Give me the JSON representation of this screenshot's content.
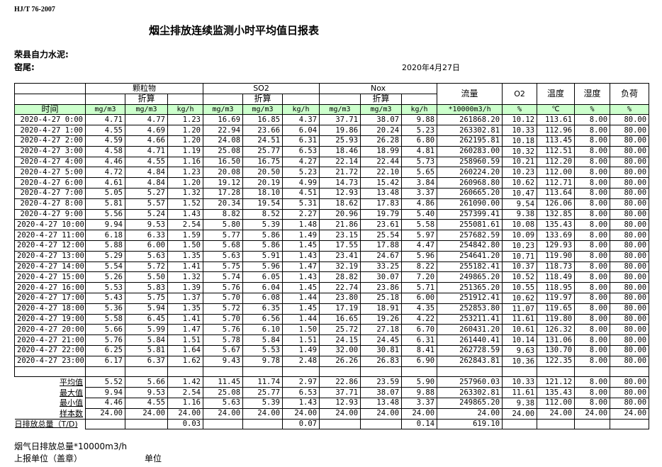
{
  "header": {
    "standard": "HJ/T  76-2007",
    "title": "烟尘排放连续监测小时平均值日报表",
    "company": "荣县自力水泥:",
    "kiln": "窑尾:",
    "date": "2020年4月27日"
  },
  "table": {
    "groups": {
      "pm": "颗粒物",
      "so2": "SO2",
      "nox": "Nox",
      "flow": "流量",
      "o2": "O2",
      "temp": "温度",
      "hum": "湿度",
      "load": "负荷"
    },
    "converted": "折算",
    "time_label": "时间",
    "units": [
      "mg/m3",
      "mg/m3",
      "kg/h",
      "mg/m3",
      "mg/m3",
      "kg/h",
      "mg/m3",
      "mg/m3",
      "kg/h",
      "*10000m3/h",
      "%",
      "℃",
      "%",
      "%"
    ],
    "rows": [
      [
        "2020-4-27 0:00",
        "4.71",
        "4.77",
        "1.23",
        "16.69",
        "16.85",
        "4.37",
        "37.71",
        "38.07",
        "9.88",
        "261868.20",
        "10.12",
        "113.61",
        "8.00",
        "80.00"
      ],
      [
        "2020-4-27 1:00",
        "4.55",
        "4.69",
        "1.20",
        "22.94",
        "23.66",
        "6.04",
        "19.86",
        "20.24",
        "5.23",
        "263302.81",
        "10.33",
        "112.96",
        "8.00",
        "80.00"
      ],
      [
        "2020-4-27 2:00",
        "4.59",
        "4.66",
        "1.20",
        "24.08",
        "24.51",
        "6.31",
        "25.93",
        "26.28",
        "6.80",
        "262195.81",
        "10.18",
        "113.45",
        "8.00",
        "80.00"
      ],
      [
        "2020-4-27 3:00",
        "4.58",
        "4.71",
        "1.19",
        "25.08",
        "25.77",
        "6.53",
        "18.46",
        "18.99",
        "4.81",
        "260283.00",
        "10.32",
        "112.51",
        "8.00",
        "80.00"
      ],
      [
        "2020-4-27 4:00",
        "4.46",
        "4.55",
        "1.16",
        "16.50",
        "16.75",
        "4.27",
        "22.14",
        "22.44",
        "5.73",
        "258960.59",
        "10.21",
        "112.20",
        "8.00",
        "80.00"
      ],
      [
        "2020-4-27 5:00",
        "4.72",
        "4.84",
        "1.23",
        "20.08",
        "20.50",
        "5.23",
        "21.72",
        "22.10",
        "5.65",
        "260224.20",
        "10.23",
        "112.00",
        "8.00",
        "80.00"
      ],
      [
        "2020-4-27 6:00",
        "4.61",
        "4.84",
        "1.20",
        "19.12",
        "20.19",
        "4.99",
        "14.73",
        "15.42",
        "3.84",
        "260968.80",
        "10.62",
        "112.71",
        "8.00",
        "80.00"
      ],
      [
        "2020-4-27 7:00",
        "5.05",
        "5.27",
        "1.32",
        "17.28",
        "18.10",
        "4.51",
        "12.93",
        "13.48",
        "3.37",
        "260665.20",
        "10.47",
        "113.64",
        "8.00",
        "80.00"
      ],
      [
        "2020-4-27 8:00",
        "5.81",
        "5.57",
        "1.52",
        "20.34",
        "19.54",
        "5.31",
        "18.62",
        "17.83",
        "4.86",
        "261090.00",
        "9.54",
        "126.06",
        "8.00",
        "80.00"
      ],
      [
        "2020-4-27 9:00",
        "5.56",
        "5.24",
        "1.43",
        "8.82",
        "8.52",
        "2.27",
        "20.96",
        "19.79",
        "5.40",
        "257399.41",
        "9.38",
        "132.85",
        "8.00",
        "80.00"
      ],
      [
        "2020-4-27 10:00",
        "9.94",
        "9.53",
        "2.54",
        "5.80",
        "5.39",
        "1.48",
        "21.86",
        "23.61",
        "5.58",
        "255081.61",
        "10.08",
        "135.43",
        "8.00",
        "80.00"
      ],
      [
        "2020-4-27 11:00",
        "6.18",
        "6.33",
        "1.59",
        "5.77",
        "5.86",
        "1.49",
        "23.15",
        "25.54",
        "5.97",
        "257682.59",
        "10.09",
        "133.69",
        "8.00",
        "80.00"
      ],
      [
        "2020-4-27 12:00",
        "5.88",
        "6.00",
        "1.50",
        "5.68",
        "5.86",
        "1.45",
        "17.55",
        "17.88",
        "4.47",
        "254842.80",
        "10.23",
        "129.93",
        "8.00",
        "80.00"
      ],
      [
        "2020-4-27 13:00",
        "5.29",
        "5.63",
        "1.35",
        "5.63",
        "5.91",
        "1.43",
        "23.41",
        "24.67",
        "5.96",
        "254641.20",
        "10.71",
        "119.90",
        "8.00",
        "80.00"
      ],
      [
        "2020-4-27 14:00",
        "5.54",
        "5.72",
        "1.41",
        "5.75",
        "5.96",
        "1.47",
        "32.19",
        "33.25",
        "8.22",
        "255182.41",
        "10.37",
        "118.73",
        "8.00",
        "80.00"
      ],
      [
        "2020-4-27 15:00",
        "5.26",
        "5.50",
        "1.32",
        "5.74",
        "6.05",
        "1.43",
        "28.82",
        "30.07",
        "7.20",
        "249865.20",
        "10.52",
        "118.49",
        "8.00",
        "80.00"
      ],
      [
        "2020-4-27 16:00",
        "5.53",
        "5.83",
        "1.39",
        "5.76",
        "6.04",
        "1.45",
        "22.74",
        "23.86",
        "5.71",
        "251365.20",
        "10.55",
        "118.95",
        "8.00",
        "80.00"
      ],
      [
        "2020-4-27 17:00",
        "5.43",
        "5.75",
        "1.37",
        "5.70",
        "6.08",
        "1.44",
        "23.80",
        "25.18",
        "6.00",
        "251912.41",
        "10.62",
        "119.97",
        "8.00",
        "80.00"
      ],
      [
        "2020-4-27 18:00",
        "5.36",
        "5.94",
        "1.35",
        "5.72",
        "6.35",
        "1.45",
        "17.19",
        "18.91",
        "4.35",
        "252853.80",
        "11.07",
        "119.65",
        "8.00",
        "80.00"
      ],
      [
        "2020-4-27 19:00",
        "5.58",
        "6.45",
        "1.41",
        "5.70",
        "6.56",
        "1.44",
        "16.65",
        "19.26",
        "4.22",
        "253211.41",
        "11.61",
        "119.80",
        "8.00",
        "80.00"
      ],
      [
        "2020-4-27 20:00",
        "5.66",
        "5.99",
        "1.47",
        "5.76",
        "6.10",
        "1.50",
        "25.72",
        "27.18",
        "6.70",
        "260431.20",
        "10.61",
        "126.32",
        "8.00",
        "80.00"
      ],
      [
        "2020-4-27 21:00",
        "5.76",
        "5.84",
        "1.51",
        "5.78",
        "5.84",
        "1.51",
        "24.15",
        "24.45",
        "6.31",
        "261440.41",
        "10.14",
        "131.06",
        "8.00",
        "80.00"
      ],
      [
        "2020-4-27 22:00",
        "6.25",
        "5.81",
        "1.64",
        "5.67",
        "5.53",
        "1.49",
        "32.00",
        "30.81",
        "8.41",
        "262728.59",
        "9.63",
        "130.70",
        "8.00",
        "80.00"
      ],
      [
        "2020-4-27 23:00",
        "6.17",
        "6.37",
        "1.62",
        "9.43",
        "9.78",
        "2.48",
        "26.26",
        "26.83",
        "6.90",
        "262843.81",
        "10.36",
        "122.35",
        "8.00",
        "80.00"
      ]
    ],
    "summary": [
      [
        "平均值",
        "5.52",
        "5.66",
        "1.42",
        "11.45",
        "11.74",
        "2.97",
        "22.86",
        "23.59",
        "5.90",
        "257960.03",
        "10.33",
        "121.12",
        "8.00",
        "80.00"
      ],
      [
        "最大值",
        "9.94",
        "9.53",
        "2.54",
        "25.08",
        "25.77",
        "6.53",
        "37.71",
        "38.07",
        "9.88",
        "263302.81",
        "11.61",
        "135.43",
        "8.00",
        "80.00"
      ],
      [
        "最小值",
        "4.46",
        "4.55",
        "1.16",
        "5.63",
        "5.39",
        "1.43",
        "12.93",
        "13.48",
        "3.37",
        "249865.20",
        "9.38",
        "112.00",
        "8.00",
        "80.00"
      ],
      [
        "样本数",
        "24.00",
        "24.00",
        "24.00",
        "24.00",
        "24.00",
        "24.00",
        "24.00",
        "24.00",
        "24.00",
        "24.00",
        "24.00",
        "24.00",
        "24.00",
        "24.00"
      ]
    ],
    "daily_total": [
      "日排放总量（T/D)",
      "",
      "",
      "0.03",
      "",
      "",
      "0.07",
      "",
      "",
      "0.14",
      "619.10",
      "",
      "",
      "",
      ""
    ]
  },
  "footer": {
    "flue_gas_total": "烟气日排放总量*10000m3/h",
    "reporting_unit": "上报单位（盖章）",
    "unit": "单位"
  }
}
